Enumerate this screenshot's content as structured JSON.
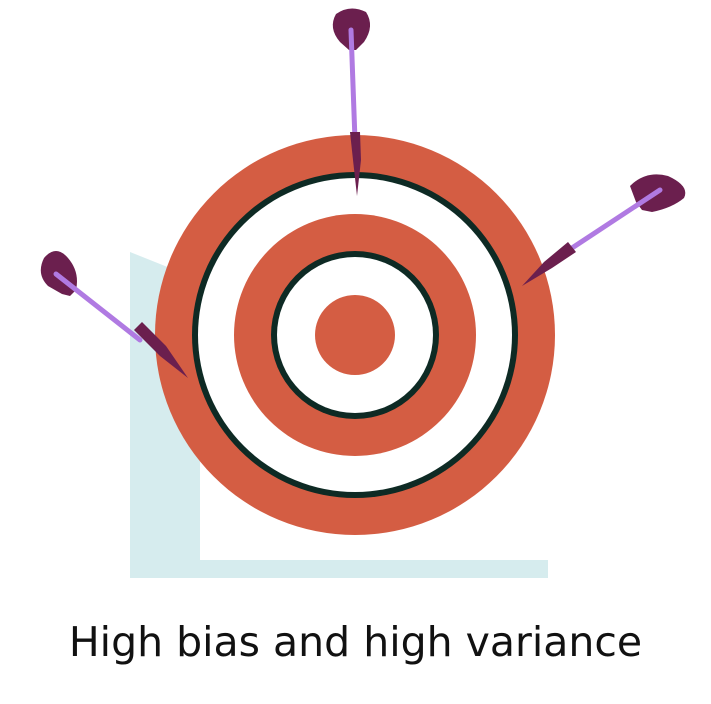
{
  "caption": "High bias and high variance",
  "colors": {
    "background": "#ffffff",
    "backdrop_panel": "#d6ecee",
    "target_ring": "#d45d43",
    "target_white": "#ffffff",
    "target_outline": "#0e2a24",
    "dart_flight": "#6b1f4e",
    "dart_shaft": "#b07ae2",
    "dart_tip": "#6b1f4e"
  },
  "icons": {
    "target": "bullseye-target-icon",
    "dart": "dart-icon"
  },
  "darts": [
    {
      "id": "dart-left",
      "position": "left edge of outer ring"
    },
    {
      "id": "dart-top",
      "position": "top of outer ring"
    },
    {
      "id": "dart-right",
      "position": "right edge of outer ring"
    }
  ]
}
